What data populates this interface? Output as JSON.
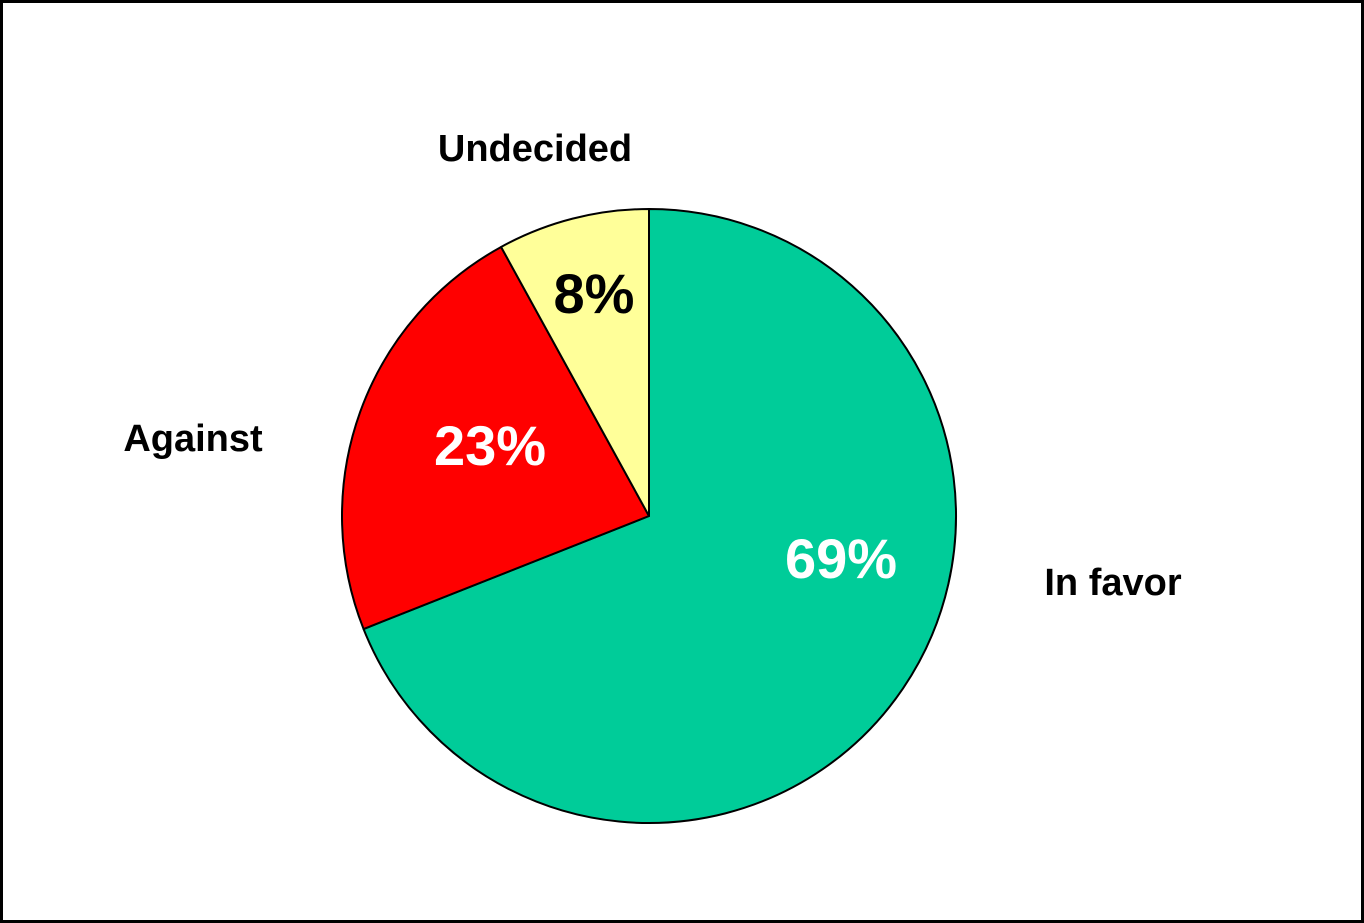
{
  "chart_data": {
    "type": "pie",
    "title": "",
    "categories": [
      "In favor",
      "Against",
      "Undecided"
    ],
    "values": [
      69,
      23,
      8
    ],
    "value_labels": [
      "69%",
      "23%",
      "8%"
    ],
    "colors": [
      "#00CC99",
      "#FF0000",
      "#FFFF99"
    ],
    "value_label_colors": [
      "#FFFFFF",
      "#FFFFFF",
      "#000000"
    ],
    "start": "12 o'clock",
    "direction": "clockwise",
    "legend": "none",
    "outline_color": "#000000"
  }
}
